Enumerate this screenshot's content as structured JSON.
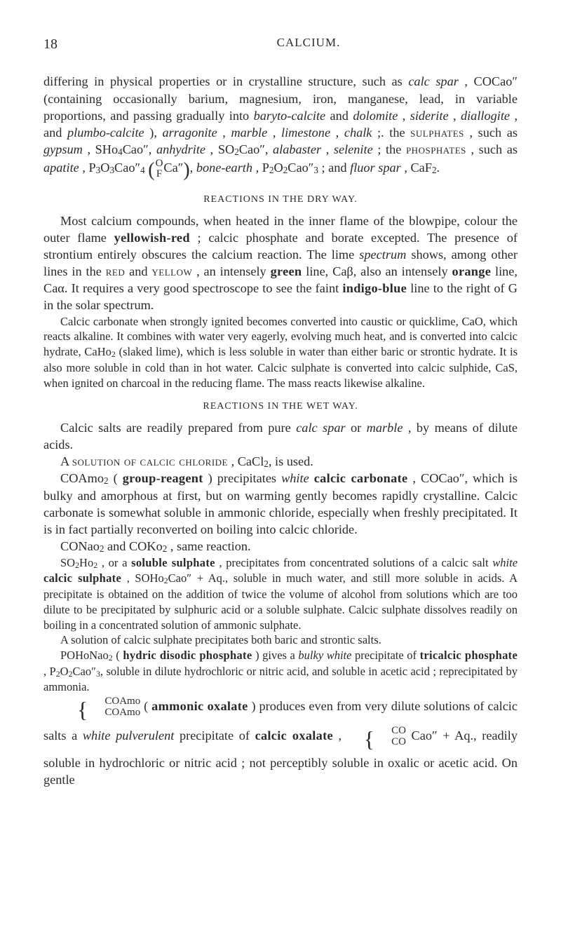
{
  "page_number": "18",
  "running_head": "CALCIUM.",
  "p1a": "differing in physical properties or in crystalline structure, such as ",
  "p1_calc_spar": "calc spar",
  "p1b": ", COCao″ (containing occasionally barium, magnesium, iron, manganese, lead, in variable proportions, and passing gradually into ",
  "p1_baryto": "baryto-calcite",
  "p1c": " and ",
  "p1_dolomite": "dolomite",
  "p1d": ", ",
  "p1_siderite": "siderite",
  "p1e": ", ",
  "p1_diallogite": "diallogite",
  "p1f": ", and ",
  "p1_plumbo": "plumbo-calcite",
  "p1g": "), ",
  "p1_arragonite": "arragonite",
  "p1h": ", ",
  "p1_marble": "marble",
  "p1i": ", ",
  "p1_limestone": "limestone",
  "p1j": ", ",
  "p1_chalk": "chalk",
  "p1k": " ;. the ",
  "p1_sulphates": "sulphates",
  "p1l": ", such as ",
  "p1_gypsum": "gypsum",
  "p1m": ", SHo",
  "p1n": "Cao″, ",
  "p1_anhydrite": "anhydrite",
  "p1o": ", SO",
  "p1p": "Cao″, ",
  "p1_alabaster": "alabaster",
  "p1q": ", ",
  "p1_selenite": "selenite",
  "p1r": " ; the ",
  "p1_phosphates": "phosphates",
  "p1s": ", such as ",
  "p1_apatite": "apatite",
  "p1t": ", P",
  "p1u": "O",
  "p1v": "Cao″",
  "p1_frac_top": "O",
  "p1_frac_bot": "F",
  "p1w": "Ca″",
  "p1x": ", ",
  "p1_boneearth": "bone-earth",
  "p1y": ", P",
  "p1z": "O",
  "p1aa": "Cao″",
  "p1ab": " ; and ",
  "p1_fluor": "fluor spar",
  "p1ac": ", CaF",
  "p1ad": ".",
  "dry_head": "REACTIONS IN THE DRY WAY.",
  "p2a": "Most calcium compounds, when heated in the inner flame of the blowpipe, colour the outer flame ",
  "p2_yellowish": "yellowish-red",
  "p2b": " ; calcic phosphate and borate excepted. The presence of strontium entirely obscures the calcium reaction. The lime ",
  "p2_spectrum": "spectrum",
  "p2c": " shows, among other lines in the ",
  "p2_red": "red",
  "p2d": " and ",
  "p2_yellow": "yellow",
  "p2e": ", an intensely ",
  "p2_green": "green",
  "p2f": " line, Caβ, also an intensely ",
  "p2_orange": "orange",
  "p2g": " line, Caα. It requires a very good spectroscope to see the faint ",
  "p2_indigo": "indigo-blue",
  "p2h": " line to the right of G in the solar spectrum.",
  "p3a": "Calcic carbonate when strongly ignited becomes converted into caustic or quicklime, CaO, which reacts alkaline. It combines with water very eagerly, evolving much heat, and is converted into calcic hydrate, CaHo",
  "p3b": " (slaked lime), which is less soluble in water than either baric or strontic hydrate. It is also more soluble in cold than in hot water. Calcic sulphate is converted into calcic sulphide, CaS, when ignited on charcoal in the reducing flame. The mass reacts likewise alkaline.",
  "wet_head": "REACTIONS IN THE WET WAY.",
  "p4a": "Calcic salts are readily prepared from pure ",
  "p4_calc": "calc spar",
  "p4b": " or ",
  "p4_marble": "marble",
  "p4c": ", by means of dilute acids.",
  "p5a": "A ",
  "p5_sol": "solution of calcic chloride",
  "p5b": ", CaCl",
  "p5c": ", is used.",
  "p6a": "COAmo",
  "p6b": " (",
  "p6_group": "group-reagent",
  "p6c": ") precipitates ",
  "p6_white": "white",
  "p6d": " ",
  "p6_calcic": "calcic carbonate",
  "p6e": ", COCao″, which is bulky and amorphous at first, but on warming gently becomes rapidly crystalline. Calcic carbonate is somewhat soluble in ammonic chloride, especially when freshly precipitated. It is in fact partially reconverted on boiling into calcic chloride.",
  "p7a": "CONao",
  "p7b": " and COKo",
  "p7c": ", same reaction.",
  "p8a": "SO",
  "p8b": "Ho",
  "p8c": ", or a ",
  "p8_soluble": "soluble sulphate",
  "p8d": ", precipitates from concentrated solutions of a calcic salt ",
  "p8_white": "white",
  "p8e": " ",
  "p8_calcic": "calcic sulphate",
  "p8f": ", SOHo",
  "p8g": "Cao″ + Aq., soluble in much water, and still more soluble in acids. A precipitate is obtained on the addition of twice the volume of alcohol from solutions which are too dilute to be precipitated by sulphuric acid or a soluble sulphate. Calcic sulphate dissolves readily on boiling in a concentrated solution of ammonic sulphate.",
  "p9": "A solution of calcic sulphate precipitates both baric and strontic salts.",
  "p10a": "POHoNao",
  "p10b": " (",
  "p10_hydric": "hydric disodic phosphate",
  "p10c": ") gives a ",
  "p10_bulky": "bulky white",
  "p10d": " precipitate of ",
  "p10_tri": "tricalcic phosphate",
  "p10e": ", P",
  "p10f": "O",
  "p10g": "Cao″",
  "p10h": ", soluble in dilute hydrochloric or nitric acid, and soluble in acetic acid ; reprecipitated by ammonia.",
  "p11_top": "COAmo",
  "p11_bot": "COAmo",
  "p11a": " (",
  "p11_amm": "ammonic oxalate",
  "p11b": ") produces even from very dilute solutions of calcic salts a ",
  "p11_white": "white pulverulent",
  "p11c": " precipitate of ",
  "p11_calcic": "calcic oxalate",
  "p11d": ", ",
  "p11_top2": "CO",
  "p11_bot2": "CO",
  "p11e": "Cao″ + Aq., readily soluble in hydrochloric or nitric acid ; not perceptibly soluble in oxalic or acetic acid. On gentle"
}
